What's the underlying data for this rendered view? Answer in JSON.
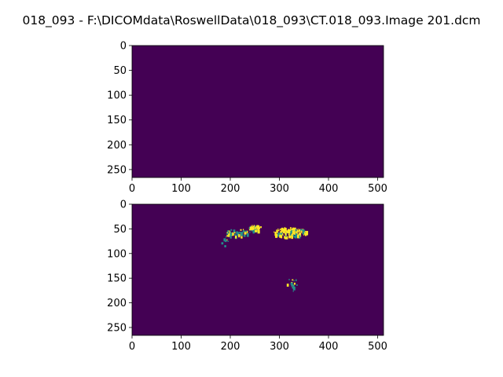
{
  "figure": {
    "title": "018_093 - F:\\DICOMdata\\RoswellData\\018_093\\CT.018_093.Image 201.dcm"
  },
  "colors": {
    "background": "#440154",
    "mid": "#21918c",
    "bright": "#fde725"
  },
  "chart_data": [
    {
      "type": "heatmap",
      "colormap": "viridis",
      "xlim": [
        0,
        512
      ],
      "ylim": [
        266,
        0
      ],
      "x_ticks": [
        "0",
        "100",
        "200",
        "300",
        "400",
        "500"
      ],
      "y_ticks": [
        "0",
        "50",
        "100",
        "150",
        "200",
        "250"
      ],
      "x_tick_values": [
        0,
        100,
        200,
        300,
        400,
        500
      ],
      "y_tick_values": [
        0,
        50,
        100,
        150,
        200,
        250
      ],
      "blobs": []
    },
    {
      "type": "heatmap",
      "colormap": "viridis",
      "xlim": [
        0,
        512
      ],
      "ylim": [
        266,
        0
      ],
      "x_ticks": [
        "0",
        "100",
        "200",
        "300",
        "400",
        "500"
      ],
      "y_ticks": [
        "0",
        "50",
        "100",
        "150",
        "200",
        "250"
      ],
      "x_tick_values": [
        0,
        100,
        200,
        300,
        400,
        500
      ],
      "y_tick_values": [
        0,
        50,
        100,
        150,
        200,
        250
      ],
      "blobs": [
        {
          "cx": 250,
          "cy": 47,
          "rx": 12,
          "ry": 6,
          "count": 45,
          "brightness": 0.7
        },
        {
          "cx": 320,
          "cy": 56,
          "rx": 35,
          "ry": 10,
          "count": 140,
          "brightness": 0.75
        },
        {
          "cx": 215,
          "cy": 57,
          "rx": 25,
          "ry": 8,
          "count": 40,
          "brightness": 0.45
        },
        {
          "cx": 190,
          "cy": 70,
          "rx": 10,
          "ry": 14,
          "count": 10,
          "brightness": 0.3
        },
        {
          "cx": 325,
          "cy": 162,
          "rx": 12,
          "ry": 14,
          "count": 18,
          "brightness": 0.5
        }
      ]
    }
  ]
}
